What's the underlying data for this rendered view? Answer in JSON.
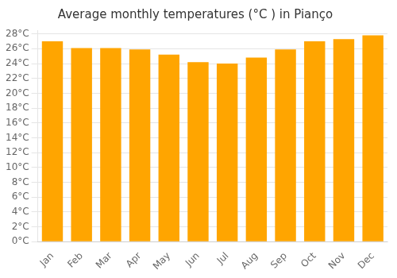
{
  "chart_data": {
    "type": "bar",
    "title": "Average monthly temperatures (°C ) in Pianço",
    "categories": [
      "Jan",
      "Feb",
      "Mar",
      "Apr",
      "May",
      "Jun",
      "Jul",
      "Aug",
      "Sep",
      "Oct",
      "Nov",
      "Dec"
    ],
    "values": [
      27.0,
      26.1,
      26.1,
      25.9,
      25.2,
      24.2,
      24.0,
      24.8,
      25.9,
      27.0,
      27.3,
      27.8
    ],
    "color": "#FFA500",
    "ylim": [
      0,
      28.5
    ],
    "yticks": [
      {
        "value": 0,
        "label": "0°C"
      },
      {
        "value": 2,
        "label": "2°C"
      },
      {
        "value": 4,
        "label": "4°C"
      },
      {
        "value": 6,
        "label": "6°C"
      },
      {
        "value": 8,
        "label": "8°C"
      },
      {
        "value": 10,
        "label": "10°C"
      },
      {
        "value": 12,
        "label": "12°C"
      },
      {
        "value": 14,
        "label": "14°C"
      },
      {
        "value": 16,
        "label": "16°C"
      },
      {
        "value": 18,
        "label": "18°C"
      },
      {
        "value": 20,
        "label": "20°C"
      },
      {
        "value": 22,
        "label": "22°C"
      },
      {
        "value": 24,
        "label": "24°C"
      },
      {
        "value": 26,
        "label": "26°C"
      },
      {
        "value": 28,
        "label": "28°C"
      }
    ],
    "grid": true
  }
}
